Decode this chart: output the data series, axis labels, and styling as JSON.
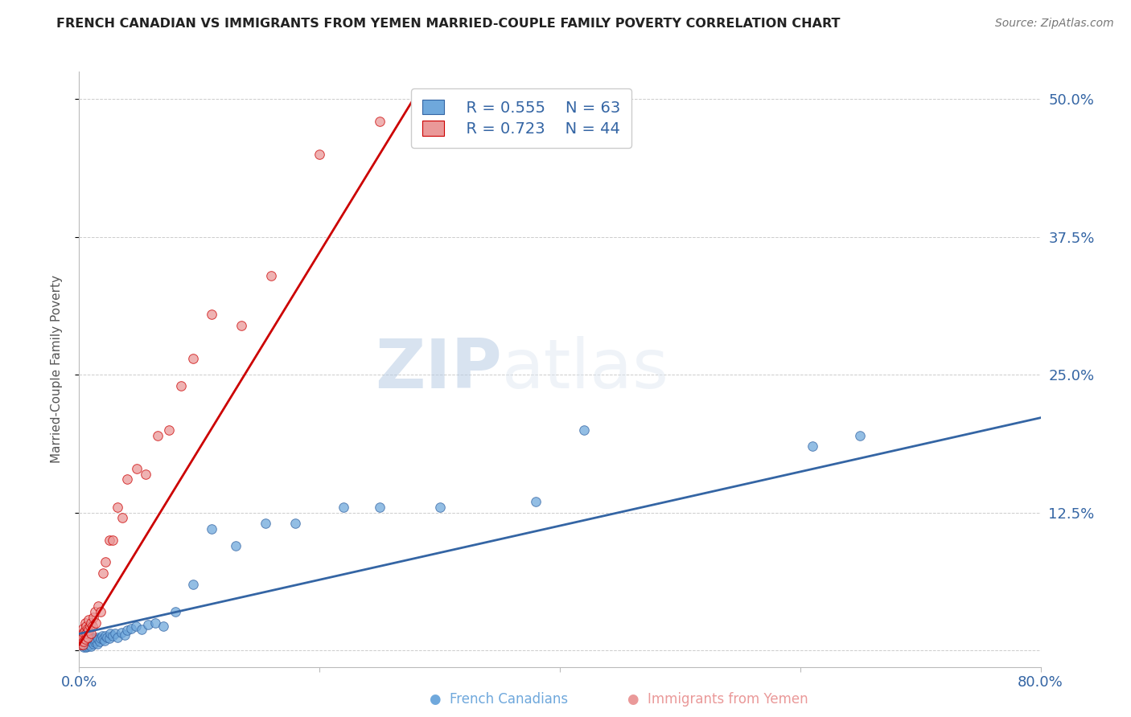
{
  "title": "FRENCH CANADIAN VS IMMIGRANTS FROM YEMEN MARRIED-COUPLE FAMILY POVERTY CORRELATION CHART",
  "source": "Source: ZipAtlas.com",
  "ylabel": "Married-Couple Family Poverty",
  "xlim": [
    0.0,
    0.8
  ],
  "ylim": [
    -0.015,
    0.525
  ],
  "grid_color": "#cccccc",
  "background_color": "#ffffff",
  "blue_color": "#6fa8dc",
  "pink_color": "#ea9999",
  "blue_line_color": "#3465a4",
  "pink_line_color": "#cc0000",
  "legend_r_blue": "R = 0.555",
  "legend_n_blue": "N = 63",
  "legend_r_pink": "R = 0.723",
  "legend_n_pink": "N = 44",
  "watermark_zip": "ZIP",
  "watermark_atlas": "atlas",
  "blue_scatter_x": [
    0.002,
    0.003,
    0.004,
    0.004,
    0.005,
    0.005,
    0.006,
    0.006,
    0.006,
    0.007,
    0.007,
    0.007,
    0.008,
    0.008,
    0.008,
    0.009,
    0.009,
    0.009,
    0.01,
    0.01,
    0.01,
    0.012,
    0.012,
    0.013,
    0.013,
    0.014,
    0.015,
    0.015,
    0.016,
    0.017,
    0.018,
    0.019,
    0.02,
    0.021,
    0.022,
    0.023,
    0.025,
    0.026,
    0.028,
    0.03,
    0.032,
    0.035,
    0.038,
    0.04,
    0.043,
    0.047,
    0.052,
    0.057,
    0.063,
    0.07,
    0.08,
    0.095,
    0.11,
    0.13,
    0.155,
    0.18,
    0.22,
    0.25,
    0.3,
    0.38,
    0.42,
    0.61,
    0.65
  ],
  "blue_scatter_y": [
    0.005,
    0.005,
    0.003,
    0.007,
    0.004,
    0.008,
    0.003,
    0.006,
    0.01,
    0.004,
    0.007,
    0.011,
    0.005,
    0.008,
    0.012,
    0.005,
    0.009,
    0.013,
    0.004,
    0.008,
    0.012,
    0.006,
    0.01,
    0.007,
    0.011,
    0.009,
    0.006,
    0.012,
    0.01,
    0.008,
    0.011,
    0.013,
    0.01,
    0.009,
    0.013,
    0.012,
    0.011,
    0.015,
    0.013,
    0.015,
    0.012,
    0.016,
    0.014,
    0.018,
    0.02,
    0.022,
    0.019,
    0.023,
    0.025,
    0.022,
    0.035,
    0.06,
    0.11,
    0.095,
    0.115,
    0.115,
    0.13,
    0.13,
    0.13,
    0.135,
    0.2,
    0.185,
    0.195
  ],
  "pink_scatter_x": [
    0.001,
    0.002,
    0.002,
    0.003,
    0.003,
    0.003,
    0.004,
    0.004,
    0.005,
    0.005,
    0.005,
    0.006,
    0.006,
    0.007,
    0.007,
    0.008,
    0.008,
    0.009,
    0.01,
    0.01,
    0.011,
    0.012,
    0.013,
    0.014,
    0.016,
    0.018,
    0.02,
    0.022,
    0.025,
    0.028,
    0.032,
    0.036,
    0.04,
    0.048,
    0.055,
    0.065,
    0.075,
    0.085,
    0.095,
    0.11,
    0.135,
    0.16,
    0.2,
    0.25
  ],
  "pink_scatter_y": [
    0.005,
    0.008,
    0.015,
    0.005,
    0.012,
    0.02,
    0.008,
    0.016,
    0.01,
    0.018,
    0.025,
    0.015,
    0.022,
    0.012,
    0.02,
    0.018,
    0.028,
    0.022,
    0.015,
    0.025,
    0.022,
    0.03,
    0.035,
    0.025,
    0.04,
    0.035,
    0.07,
    0.08,
    0.1,
    0.1,
    0.13,
    0.12,
    0.155,
    0.165,
    0.16,
    0.195,
    0.2,
    0.24,
    0.265,
    0.305,
    0.295,
    0.34,
    0.45,
    0.48
  ],
  "blue_regr_slope": 0.245,
  "blue_regr_intercept": 0.015,
  "pink_regr_slope": 1.78,
  "pink_regr_intercept": 0.005
}
